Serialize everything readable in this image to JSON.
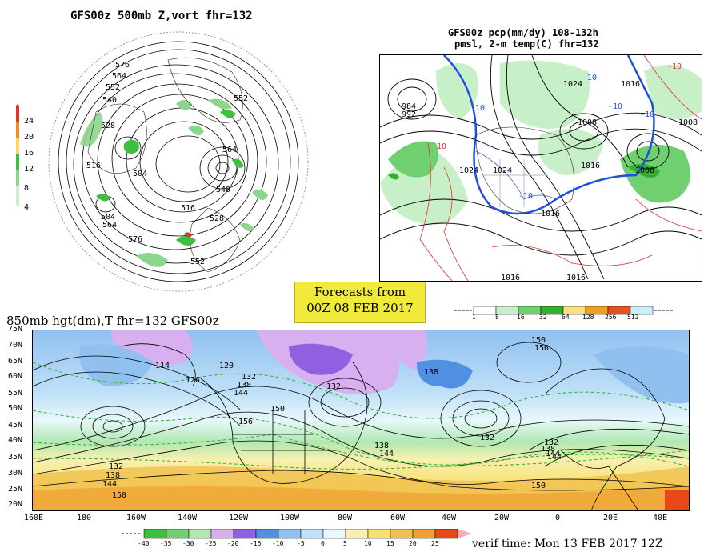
{
  "panel_polar": {
    "title": "GFS00z   500mb Z,vort    fhr=132",
    "contour_labels": [
      "576",
      "564",
      "552",
      "540",
      "528",
      "516",
      "504",
      "564",
      "552",
      "540",
      "528",
      "516",
      "504",
      "564",
      "576",
      "552"
    ],
    "scale_labels": [
      "24",
      "20",
      "16",
      "12",
      "8",
      "4"
    ],
    "scale_colors": [
      "#e2352a",
      "#f08a22",
      "#f8d860",
      "#3fbf3f",
      "#8cd68c",
      "#cfeecf"
    ]
  },
  "panel_na": {
    "title_line1": "GFS00z pcp(mm/dy) 108-132h",
    "title_line2": "pmsl, 2-m temp(C)  fhr=132",
    "contour_labels": [
      "1024",
      "1008",
      "1016",
      "1008",
      "1024",
      "1016",
      "1008",
      "1024",
      "1016",
      "984",
      "992",
      "1016",
      "1016",
      "10",
      "10",
      "-10",
      "-10",
      "10",
      "-10",
      "-10"
    ],
    "scale_labels": [
      "1",
      "8",
      "16",
      "32",
      "64",
      "128",
      "256",
      "512"
    ],
    "scale_colors": [
      "#ffffff",
      "#c8f0c8",
      "#70d070",
      "#30b030",
      "#f8e080",
      "#f0a020",
      "#e85020",
      "#c8f0f8"
    ]
  },
  "forecast_box": {
    "line1": "Forecasts from",
    "line2": "00Z 08 FEB 2017"
  },
  "panel_850": {
    "title": "850mb hgt(dm),T   fhr=132 GFS00z",
    "lat_labels": [
      "75N",
      "70N",
      "65N",
      "60N",
      "55N",
      "50N",
      "45N",
      "40N",
      "35N",
      "30N",
      "25N",
      "20N"
    ],
    "lon_labels": [
      "160E",
      "180",
      "160W",
      "140W",
      "120W",
      "100W",
      "80W",
      "60W",
      "40W",
      "20W",
      "0",
      "20E",
      "40E"
    ],
    "contour_labels": [
      "114",
      "126",
      "120",
      "132",
      "138",
      "144",
      "150",
      "156",
      "132",
      "138",
      "144",
      "132",
      "144",
      "150",
      "156",
      "138",
      "132",
      "138",
      "144",
      "150",
      "132",
      "138",
      "144",
      "150"
    ],
    "temp_scale_labels": [
      "-40",
      "-35",
      "-30",
      "-25",
      "-20",
      "-15",
      "-10",
      "-5",
      "0",
      "5",
      "10",
      "15",
      "20",
      "25"
    ],
    "temp_scale_colors": [
      "#3fbf3f",
      "#70d070",
      "#b0e8b0",
      "#d8b0f0",
      "#9060e0",
      "#5090e0",
      "#90c0f0",
      "#c0e0f8",
      "#e8f8fc",
      "#f8f0b0",
      "#f8e070",
      "#f0c050",
      "#f0a030",
      "#e84818"
    ]
  },
  "verif_time": "verif time: Mon 13 FEB 2017 12Z"
}
